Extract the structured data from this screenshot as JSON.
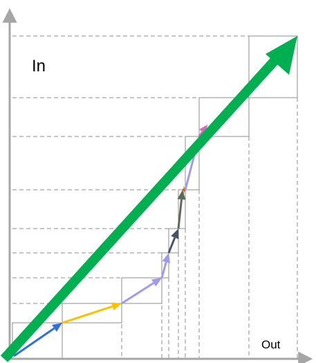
{
  "labels": {
    "in": "In",
    "out": "Out"
  },
  "colors": {
    "axis": "#a6a6a6",
    "grid": "#8c8c8c",
    "main_arrow": "#00b050",
    "steps": [
      "#2f6fe0",
      "#ffc000",
      "#9d9bef",
      "#9d9bef",
      "#44546a",
      "#5a6b5a",
      "#c55a11",
      "#9d9bef",
      "#d66bb8"
    ]
  }
}
